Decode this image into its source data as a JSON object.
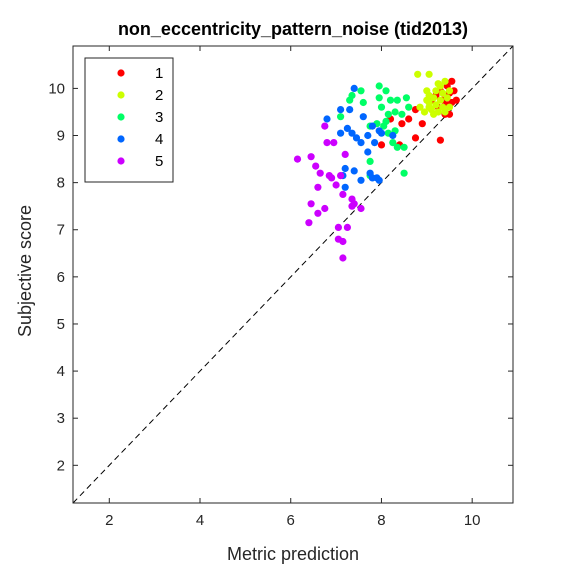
{
  "chart_data": {
    "type": "scatter",
    "title": "non_eccentricity_pattern_noise (tid2013)",
    "xlabel": "Metric prediction",
    "ylabel": "Subjective score",
    "xlim": [
      1.2,
      10.9
    ],
    "ylim": [
      1.2,
      10.9
    ],
    "xticks": [
      2,
      4,
      6,
      8,
      10
    ],
    "yticks": [
      2,
      3,
      4,
      5,
      6,
      7,
      8,
      9,
      10
    ],
    "grid": false,
    "box": true,
    "reference_line": {
      "style": "dashed",
      "color": "#000000",
      "from": [
        1.2,
        1.2
      ],
      "to": [
        10.9,
        10.9
      ]
    },
    "legend": {
      "location": "top-left"
    },
    "series": [
      {
        "name": "1",
        "color": "#ff0000",
        "points": [
          [
            9.55,
            10.15
          ],
          [
            9.45,
            10.05
          ],
          [
            9.6,
            9.95
          ],
          [
            9.5,
            9.9
          ],
          [
            9.3,
            9.95
          ],
          [
            9.65,
            9.75
          ],
          [
            9.55,
            9.7
          ],
          [
            9.45,
            9.65
          ],
          [
            9.35,
            9.75
          ],
          [
            9.2,
            9.85
          ],
          [
            9.1,
            9.75
          ],
          [
            9.5,
            9.45
          ],
          [
            9.25,
            9.6
          ],
          [
            9.4,
            9.45
          ],
          [
            8.9,
            9.25
          ],
          [
            8.75,
            9.55
          ],
          [
            8.6,
            9.35
          ],
          [
            8.45,
            9.25
          ],
          [
            8.2,
            9.35
          ],
          [
            8.0,
            8.8
          ],
          [
            8.75,
            8.95
          ],
          [
            9.3,
            8.9
          ],
          [
            8.4,
            8.8
          ]
        ]
      },
      {
        "name": "2",
        "color": "#ccff00",
        "points": [
          [
            8.8,
            10.3
          ],
          [
            9.05,
            10.3
          ],
          [
            9.25,
            10.1
          ],
          [
            9.4,
            10.15
          ],
          [
            9.3,
            10.05
          ],
          [
            9.0,
            9.95
          ],
          [
            9.2,
            9.95
          ],
          [
            9.35,
            9.9
          ],
          [
            9.5,
            9.95
          ],
          [
            9.05,
            9.85
          ],
          [
            9.15,
            9.8
          ],
          [
            9.3,
            9.75
          ],
          [
            9.45,
            9.8
          ],
          [
            9.05,
            9.7
          ],
          [
            9.2,
            9.65
          ],
          [
            9.35,
            9.6
          ],
          [
            9.5,
            9.6
          ],
          [
            9.1,
            9.55
          ],
          [
            9.25,
            9.5
          ],
          [
            9.4,
            9.5
          ],
          [
            9.05,
            9.6
          ],
          [
            8.95,
            9.5
          ],
          [
            9.15,
            9.45
          ],
          [
            9.0,
            9.75
          ],
          [
            8.85,
            9.6
          ]
        ]
      },
      {
        "name": "3",
        "color": "#00ff66",
        "points": [
          [
            7.95,
            10.05
          ],
          [
            7.55,
            9.95
          ],
          [
            7.35,
            9.85
          ],
          [
            8.1,
            9.95
          ],
          [
            7.95,
            9.8
          ],
          [
            7.6,
            9.7
          ],
          [
            7.3,
            9.75
          ],
          [
            8.2,
            9.75
          ],
          [
            8.35,
            9.75
          ],
          [
            8.55,
            9.8
          ],
          [
            8.0,
            9.6
          ],
          [
            8.3,
            9.5
          ],
          [
            8.15,
            9.45
          ],
          [
            8.45,
            9.45
          ],
          [
            8.6,
            9.6
          ],
          [
            8.1,
            9.3
          ],
          [
            7.9,
            9.25
          ],
          [
            7.75,
            9.2
          ],
          [
            8.05,
            9.2
          ],
          [
            8.3,
            9.1
          ],
          [
            8.15,
            9.05
          ],
          [
            8.35,
            8.75
          ],
          [
            8.25,
            8.85
          ],
          [
            8.5,
            8.75
          ],
          [
            7.75,
            8.45
          ],
          [
            7.75,
            8.15
          ],
          [
            8.5,
            8.2
          ],
          [
            7.1,
            9.4
          ]
        ]
      },
      {
        "name": "4",
        "color": "#0066ff",
        "points": [
          [
            7.4,
            10.0
          ],
          [
            7.1,
            9.55
          ],
          [
            6.8,
            9.35
          ],
          [
            7.3,
            9.55
          ],
          [
            7.6,
            9.4
          ],
          [
            7.8,
            9.2
          ],
          [
            7.25,
            9.15
          ],
          [
            7.1,
            9.05
          ],
          [
            7.35,
            9.05
          ],
          [
            7.45,
            8.95
          ],
          [
            7.7,
            9.0
          ],
          [
            7.95,
            9.1
          ],
          [
            8.0,
            9.05
          ],
          [
            7.55,
            8.85
          ],
          [
            7.85,
            8.85
          ],
          [
            8.25,
            9.0
          ],
          [
            7.7,
            8.65
          ],
          [
            7.2,
            8.3
          ],
          [
            7.4,
            8.25
          ],
          [
            7.15,
            8.15
          ],
          [
            7.75,
            8.2
          ],
          [
            7.8,
            8.1
          ],
          [
            7.9,
            8.1
          ],
          [
            7.95,
            8.05
          ],
          [
            7.55,
            8.05
          ],
          [
            7.2,
            7.9
          ]
        ]
      },
      {
        "name": "5",
        "color": "#cc00ff",
        "points": [
          [
            6.75,
            9.2
          ],
          [
            6.8,
            8.85
          ],
          [
            6.95,
            8.85
          ],
          [
            7.2,
            8.6
          ],
          [
            6.45,
            8.55
          ],
          [
            6.15,
            8.5
          ],
          [
            6.55,
            8.35
          ],
          [
            6.65,
            8.2
          ],
          [
            6.85,
            8.15
          ],
          [
            7.1,
            8.15
          ],
          [
            6.9,
            8.1
          ],
          [
            7.0,
            7.95
          ],
          [
            6.6,
            7.9
          ],
          [
            7.15,
            7.75
          ],
          [
            7.35,
            7.65
          ],
          [
            7.4,
            7.55
          ],
          [
            6.45,
            7.55
          ],
          [
            7.35,
            7.5
          ],
          [
            7.55,
            7.45
          ],
          [
            6.75,
            7.45
          ],
          [
            6.6,
            7.35
          ],
          [
            6.4,
            7.15
          ],
          [
            7.05,
            7.05
          ],
          [
            7.25,
            7.05
          ],
          [
            7.15,
            6.75
          ],
          [
            7.05,
            6.8
          ],
          [
            7.15,
            6.4
          ]
        ]
      }
    ]
  }
}
